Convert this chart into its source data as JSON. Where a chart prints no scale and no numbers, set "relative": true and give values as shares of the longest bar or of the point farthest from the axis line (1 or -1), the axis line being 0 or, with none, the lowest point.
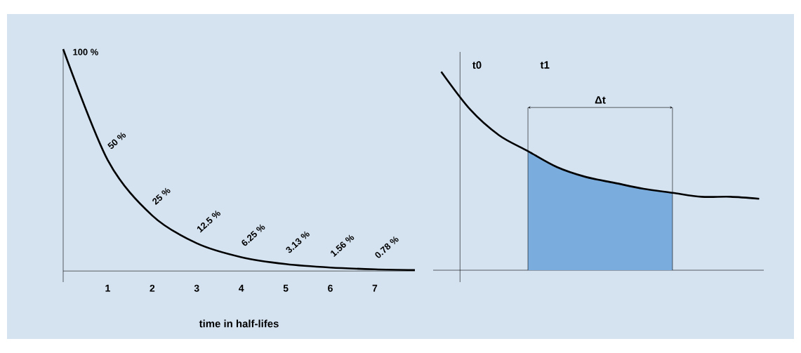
{
  "chart_data": [
    {
      "type": "line",
      "xlabel": "time in half-lifes",
      "x": [
        0,
        1,
        2,
        3,
        4,
        5,
        6,
        7,
        7.9
      ],
      "values": [
        100,
        50,
        25,
        12.5,
        6.25,
        3.13,
        1.56,
        0.78,
        0.43
      ],
      "value_labels": [
        "100 %",
        "50 %",
        "25 %",
        "12.5 %",
        "6.25 %",
        "3.13 %",
        "1.56 %",
        "0.78 %",
        null
      ],
      "color": "#000000",
      "xlim": [
        0,
        7.9
      ],
      "ylim": [
        -5,
        100
      ],
      "xticks": [
        1,
        2,
        3,
        4,
        5,
        6,
        7
      ],
      "tick_labels": "x"
    },
    {
      "type": "line",
      "relative": true,
      "categories": [
        null,
        null,
        null,
        null,
        null,
        null,
        null,
        null,
        null,
        null,
        null,
        null
      ],
      "tick_labels": false,
      "series": [
        {
          "type": "area",
          "color": "#7aadde",
          "values": [
            null,
            null,
            null,
            0.6,
            0.52,
            0.47,
            0.44,
            0.41,
            0.39,
            null,
            null,
            null
          ]
        },
        {
          "type": "line",
          "color": "#000000",
          "values": [
            1.0,
            0.81,
            0.68,
            0.6,
            0.52,
            0.47,
            0.44,
            0.41,
            0.39,
            0.37,
            0.37,
            0.36
          ]
        }
      ],
      "annotations": [
        "t0",
        "t1",
        "Δt"
      ]
    }
  ]
}
